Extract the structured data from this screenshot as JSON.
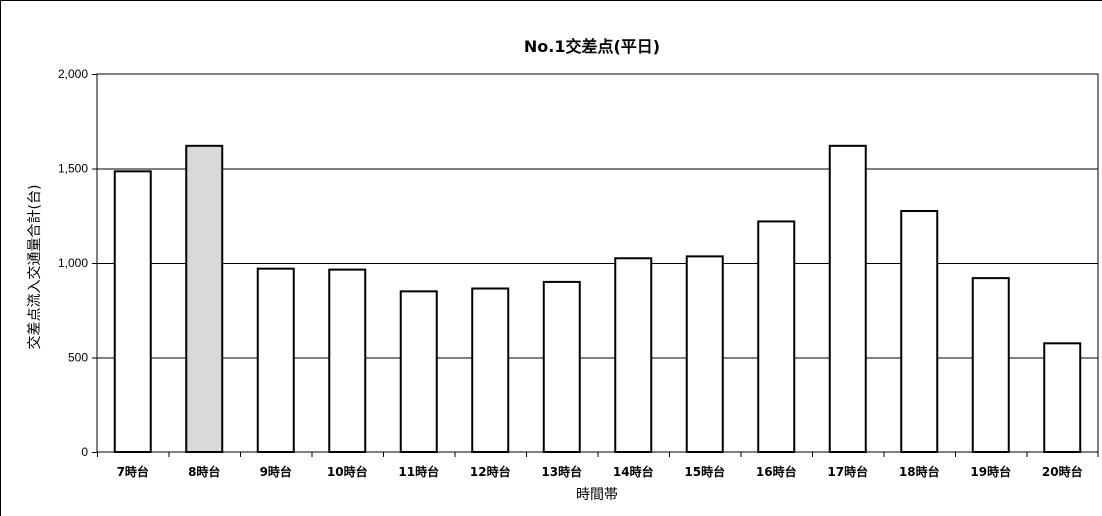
{
  "chart_data": {
    "type": "bar",
    "title": "No.1交差点(平日)",
    "xlabel": "時間帯",
    "ylabel": "交差点流入交通量合計(台)",
    "ylim": [
      0,
      2000
    ],
    "yticks": [
      0,
      500,
      1000,
      1500,
      2000
    ],
    "ytick_labels": [
      "0",
      "500",
      "1,000",
      "1,500",
      "2,000"
    ],
    "grid": true,
    "categories": [
      "7時台",
      "8時台",
      "9時台",
      "10時台",
      "11時台",
      "12時台",
      "13時台",
      "14時台",
      "15時台",
      "16時台",
      "17時台",
      "18時台",
      "19時台",
      "20時台"
    ],
    "values": [
      1485,
      1620,
      970,
      965,
      850,
      865,
      900,
      1025,
      1035,
      1220,
      1620,
      1275,
      920,
      575
    ],
    "highlight_index": 1,
    "colors": {
      "bar": "#ffffff",
      "highlight": "#d9d9d9",
      "stroke": "#000000",
      "grid": "#000000"
    }
  }
}
